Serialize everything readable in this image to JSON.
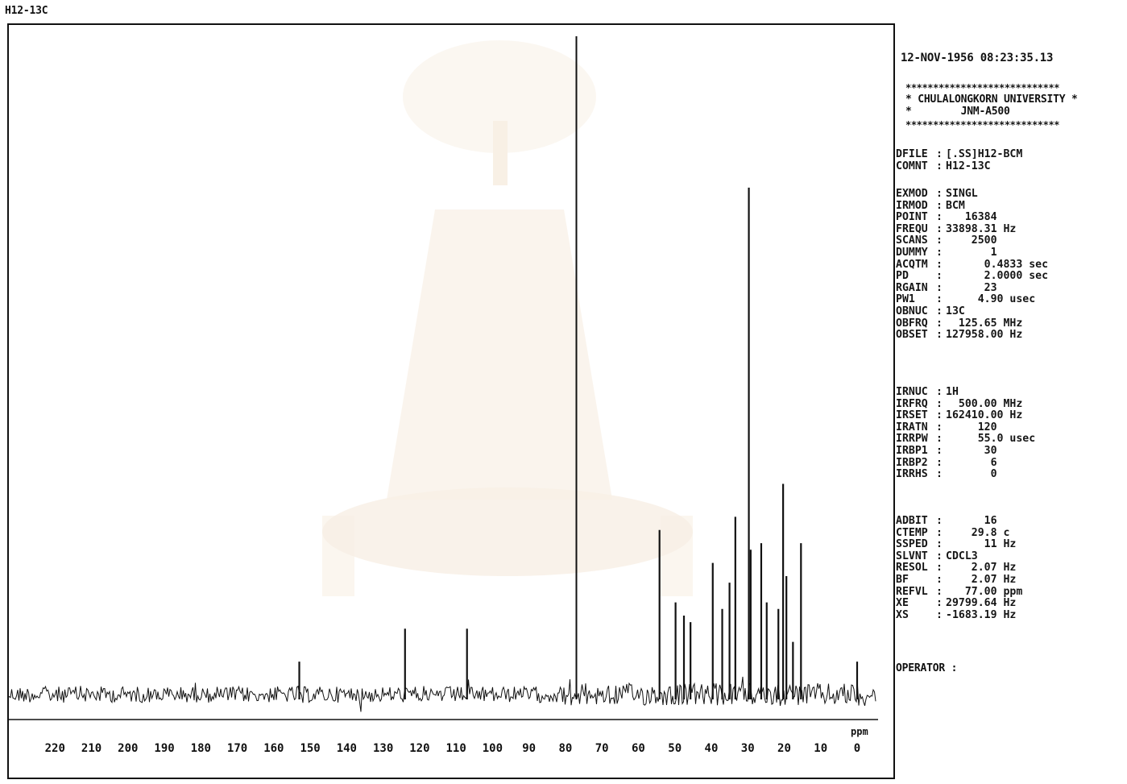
{
  "header": {
    "sample_label": "H12-13C",
    "datetime": "12-NOV-1956 08:23:35.13"
  },
  "banner": {
    "stars": "****************************",
    "line1_left": "*",
    "line1_text": "CHULALONGKORN UNIVERSITY",
    "line1_right": "*",
    "line2_left": "*",
    "line2_text": "JNM-A500",
    "line2_right": "*"
  },
  "params": {
    "group1": [
      {
        "key": "DFILE",
        "val": "[.SS]H12-BCM"
      },
      {
        "key": "COMNT",
        "val": "H12-13C"
      }
    ],
    "group2": [
      {
        "key": "EXMOD",
        "val": "SINGL"
      },
      {
        "key": "IRMOD",
        "val": "BCM"
      },
      {
        "key": "POINT",
        "val": "   16384"
      },
      {
        "key": "FREQU",
        "val": "33898.31 Hz"
      },
      {
        "key": "SCANS",
        "val": "    2500"
      },
      {
        "key": "DUMMY",
        "val": "       1"
      },
      {
        "key": "ACQTM",
        "val": "      0.4833 sec"
      },
      {
        "key": "PD",
        "val": "      2.0000 sec"
      },
      {
        "key": "RGAIN",
        "val": "      23"
      },
      {
        "key": "PW1",
        "val": "     4.90 usec"
      },
      {
        "key": "OBNUC",
        "val": "13C"
      },
      {
        "key": "OBFRQ",
        "val": "  125.65 MHz"
      },
      {
        "key": "OBSET",
        "val": "127958.00 Hz"
      }
    ],
    "group3": [
      {
        "key": "IRNUC",
        "val": "1H"
      },
      {
        "key": "IRFRQ",
        "val": "  500.00 MHz"
      },
      {
        "key": "IRSET",
        "val": "162410.00 Hz"
      },
      {
        "key": "IRATN",
        "val": "     120"
      },
      {
        "key": "IRRPW",
        "val": "     55.0 usec"
      },
      {
        "key": "IRBP1",
        "val": "      30"
      },
      {
        "key": "IRBP2",
        "val": "       6"
      },
      {
        "key": "IRRHS",
        "val": "       0"
      }
    ],
    "group4": [
      {
        "key": "ADBIT",
        "val": "      16"
      },
      {
        "key": "CTEMP",
        "val": "    29.8 c"
      },
      {
        "key": "SSPED",
        "val": "      11 Hz"
      },
      {
        "key": "SLVNT",
        "val": "CDCL3"
      },
      {
        "key": "RESOL",
        "val": "    2.07 Hz"
      },
      {
        "key": "BF",
        "val": "    2.07 Hz"
      },
      {
        "key": "REFVL",
        "val": "   77.00 ppm"
      },
      {
        "key": "XE",
        "val": "29799.64 Hz"
      },
      {
        "key": "XS",
        "val": "-1683.19 Hz"
      }
    ],
    "operator": "OPERATOR :"
  },
  "colors": {
    "ink": "#111111",
    "background": "#ffffff",
    "watermark": "#d2a060"
  },
  "chart_data": {
    "type": "line",
    "title": "",
    "xlabel": "ppm",
    "ylabel": "",
    "x_reversed": true,
    "xlim": [
      224,
      -6
    ],
    "ylim": [
      0,
      100
    ],
    "grid": false,
    "x_ticks": [
      220,
      210,
      200,
      190,
      180,
      170,
      160,
      150,
      140,
      130,
      120,
      110,
      100,
      90,
      80,
      70,
      60,
      50,
      40,
      30,
      20,
      10,
      0
    ],
    "peaks": [
      {
        "ppm": 153.0,
        "intensity": 5
      },
      {
        "ppm": 124.0,
        "intensity": 10
      },
      {
        "ppm": 107.0,
        "intensity": 10
      },
      {
        "ppm": 77.0,
        "intensity": 100
      },
      {
        "ppm": 54.2,
        "intensity": 25
      },
      {
        "ppm": 49.8,
        "intensity": 14
      },
      {
        "ppm": 47.5,
        "intensity": 12
      },
      {
        "ppm": 45.7,
        "intensity": 11
      },
      {
        "ppm": 39.6,
        "intensity": 20
      },
      {
        "ppm": 37.0,
        "intensity": 13
      },
      {
        "ppm": 35.0,
        "intensity": 17
      },
      {
        "ppm": 33.4,
        "intensity": 27
      },
      {
        "ppm": 29.7,
        "intensity": 77
      },
      {
        "ppm": 29.2,
        "intensity": 22
      },
      {
        "ppm": 26.3,
        "intensity": 23
      },
      {
        "ppm": 24.8,
        "intensity": 14
      },
      {
        "ppm": 21.6,
        "intensity": 13
      },
      {
        "ppm": 20.3,
        "intensity": 32
      },
      {
        "ppm": 19.4,
        "intensity": 18
      },
      {
        "ppm": 17.6,
        "intensity": 8
      },
      {
        "ppm": 15.4,
        "intensity": 23
      },
      {
        "ppm": 0.0,
        "intensity": 5
      }
    ]
  }
}
